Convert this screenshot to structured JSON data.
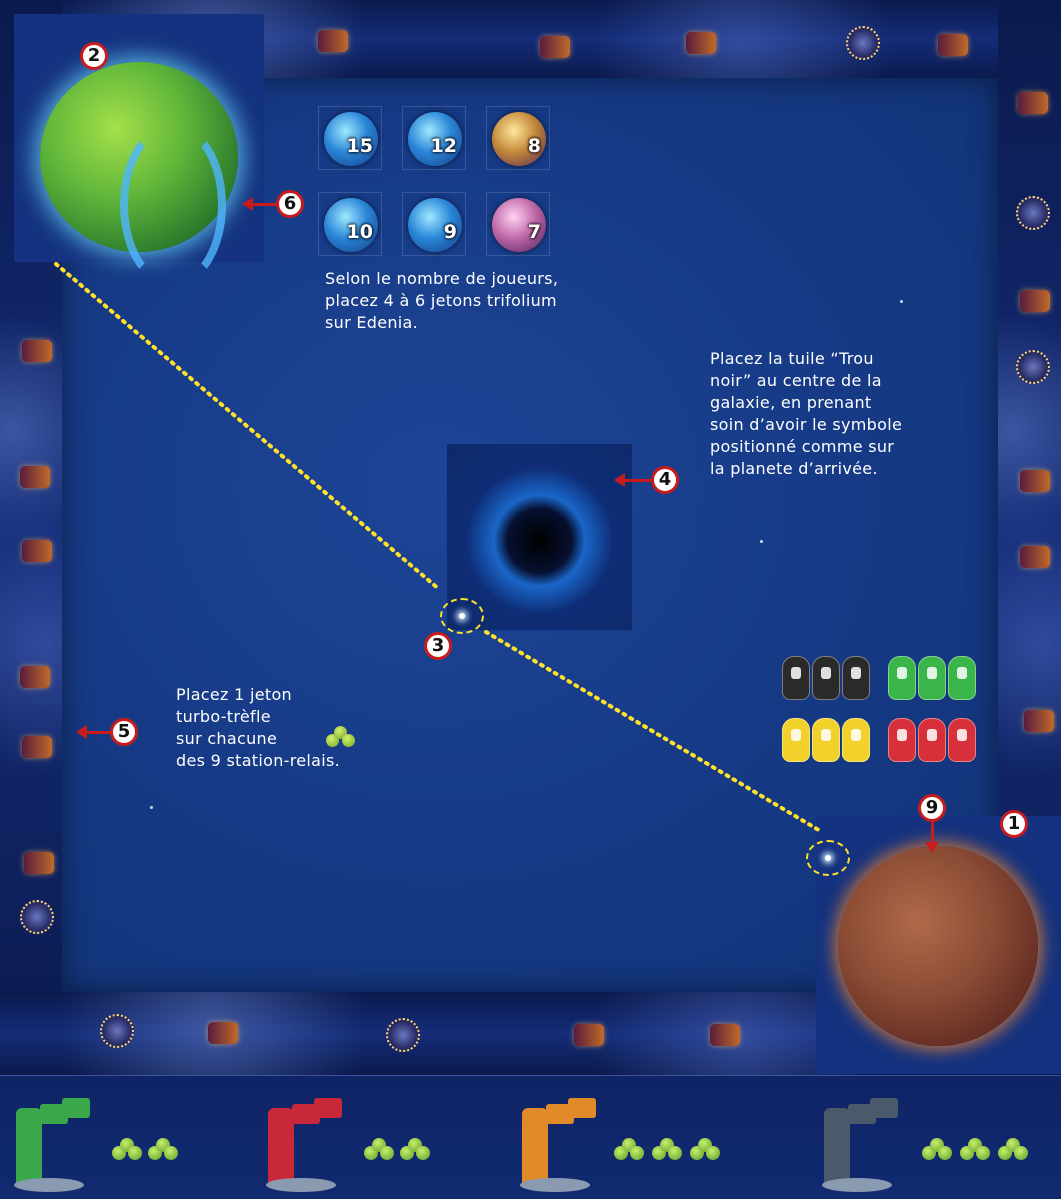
{
  "tokens": [
    {
      "value": "15",
      "color": "blue"
    },
    {
      "value": "12",
      "color": "blue"
    },
    {
      "value": "8",
      "color": "gold"
    },
    {
      "value": "10",
      "color": "blue"
    },
    {
      "value": "9",
      "color": "blue"
    },
    {
      "value": "7",
      "color": "pink"
    }
  ],
  "instructions": {
    "tokens_line1": "Selon le nombre de joueurs,",
    "tokens_line2": "placez 4 à 6 jetons trifolium",
    "tokens_line3": "sur Edenia.",
    "blackhole_line1": "Placez la tuile “Trou",
    "blackhole_line2": "noir” au centre de la",
    "blackhole_line3": "galaxie, en prenant",
    "blackhole_line4": "soin d’avoir le symbole",
    "blackhole_line5": "positionné comme sur",
    "blackhole_line6": "la planete d’arrivée.",
    "clover_line1": "Placez 1 jeton",
    "clover_line2": "turbo-trèfle",
    "clover_line3": "sur chacune",
    "clover_line4": "des 9 station-relais."
  },
  "callouts": {
    "c1": "1",
    "c2": "2",
    "c3": "3",
    "c4": "4",
    "c5": "5",
    "c6": "6",
    "c9": "9"
  },
  "ship_colors": {
    "black": "#2a2a2a",
    "green": "#3ab54a",
    "yellow": "#f2d22a",
    "red": "#d8303a"
  },
  "player_bases": [
    {
      "color": "green",
      "hex": "#3aa84a",
      "clovers": 2
    },
    {
      "color": "red",
      "hex": "#c8283a",
      "clovers": 2
    },
    {
      "color": "orange",
      "hex": "#e08a2a",
      "clovers": 3
    },
    {
      "color": "black",
      "hex": "#4a5a6a",
      "clovers": 3
    }
  ],
  "colors": {
    "callout_red": "#c81c1c",
    "dotted_path": "#ffe12a",
    "board_blue": "#163a86"
  }
}
